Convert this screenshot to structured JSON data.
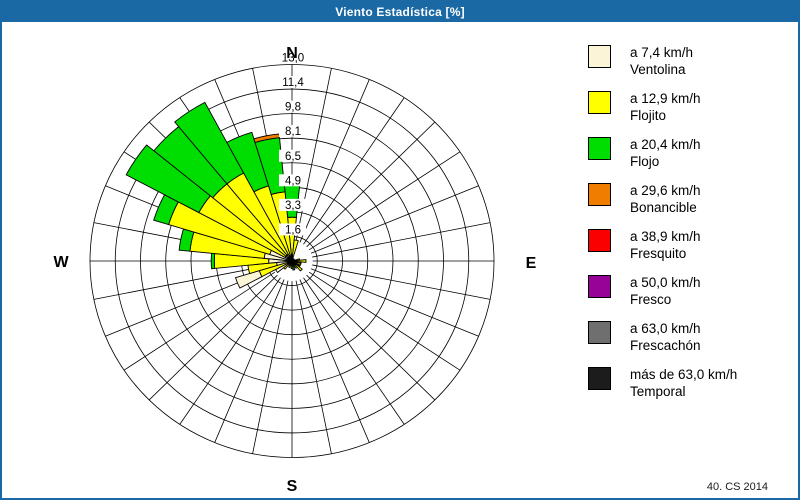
{
  "window": {
    "title": "Viento Estadística [%]"
  },
  "footer": {
    "credit": "40. CS 2014"
  },
  "legend": {
    "items": [
      {
        "color": "#FBF4D6",
        "speed": "a 7,4 km/h",
        "name": "Ventolina"
      },
      {
        "color": "#FFFF00",
        "speed": "a 12,9 km/h",
        "name": "Flojito"
      },
      {
        "color": "#00DD00",
        "speed": "a 20,4 km/h",
        "name": "Flojo"
      },
      {
        "color": "#F07D00",
        "speed": "a 29,6 km/h",
        "name": "Bonancible"
      },
      {
        "color": "#FA0000",
        "speed": "a 38,9 km/h",
        "name": "Fresquito"
      },
      {
        "color": "#970397",
        "speed": "a 50,0 km/h",
        "name": "Fresco"
      },
      {
        "color": "#6F6F6F",
        "speed": "a 63,0 km/h",
        "name": "Frescachón"
      },
      {
        "color": "#1C1C1C",
        "speed": "más de 63,0 km/h",
        "name": "Temporal"
      }
    ]
  },
  "chart_data": {
    "type": "windrose-polar-bar",
    "title": "Viento Estadística [%]",
    "units": "%",
    "max_value": 13.0,
    "sector_width_deg": 11.25,
    "grid": {
      "rings": 8,
      "spokes": 32,
      "hub_radius_value": 1.4
    },
    "ring_values": [
      1.6,
      3.3,
      4.9,
      6.5,
      8.1,
      9.8,
      11.4,
      13.0
    ],
    "ring_labels": [
      "1,6",
      "3,3",
      "4,9",
      "6,5",
      "8,1",
      "9,8",
      "11,4",
      "13,0"
    ],
    "cardinal_labels": {
      "n": "N",
      "e": "E",
      "s": "S",
      "w": "W"
    },
    "colors": {
      "cream": "#FBF4D6",
      "yellow": "#FFFF00",
      "green": "#00DD00",
      "orange": "#F07D00",
      "red": "#FA0000",
      "purple": "#970397",
      "gray": "#6F6F6F",
      "dark": "#1C1C1C"
    },
    "petals": [
      {
        "az": 0.0,
        "segments": [
          [
            "cream",
            0.4
          ],
          [
            "yellow",
            2.9
          ],
          [
            "green",
            5.3
          ],
          [
            "red",
            5.6
          ]
        ]
      },
      {
        "az": 11.25,
        "segments": [
          [
            "yellow",
            1.4
          ]
        ]
      },
      {
        "az": 78.75,
        "segments": [
          [
            "yellow",
            0.5
          ]
        ]
      },
      {
        "az": 90.0,
        "segments": [
          [
            "yellow",
            0.9
          ]
        ]
      },
      {
        "az": 101.25,
        "segments": [
          [
            "dark",
            0.6
          ]
        ]
      },
      {
        "az": 112.5,
        "segments": [
          [
            "yellow",
            0.6
          ]
        ]
      },
      {
        "az": 123.75,
        "segments": [
          [
            "dark",
            0.6
          ]
        ]
      },
      {
        "az": 135.0,
        "segments": [
          [
            "yellow",
            0.85
          ]
        ]
      },
      {
        "az": 146.25,
        "segments": [
          [
            "yellow",
            0.55
          ]
        ]
      },
      {
        "az": 157.5,
        "segments": [
          [
            "yellow",
            0.45
          ]
        ]
      },
      {
        "az": 168.75,
        "segments": [
          [
            "green",
            0.6
          ]
        ]
      },
      {
        "az": 180.0,
        "segments": [
          [
            "yellow",
            0.5
          ]
        ]
      },
      {
        "az": 202.5,
        "segments": [
          [
            "yellow",
            0.45
          ]
        ]
      },
      {
        "az": 225.0,
        "segments": [
          [
            "yellow",
            0.7
          ]
        ]
      },
      {
        "az": 236.25,
        "segments": [
          [
            "cream",
            1.2
          ]
        ]
      },
      {
        "az": 247.5,
        "segments": [
          [
            "yellow",
            2.2
          ],
          [
            "cream",
            3.8
          ]
        ]
      },
      {
        "az": 258.75,
        "segments": [
          [
            "cream",
            1.0
          ],
          [
            "yellow",
            2.85
          ]
        ]
      },
      {
        "az": 270.0,
        "segments": [
          [
            "cream",
            1.5
          ],
          [
            "yellow",
            5.0
          ],
          [
            "green",
            5.2
          ]
        ]
      },
      {
        "az": 281.25,
        "segments": [
          [
            "cream",
            1.8
          ],
          [
            "yellow",
            6.6
          ],
          [
            "green",
            7.3
          ]
        ]
      },
      {
        "az": 292.5,
        "segments": [
          [
            "cream",
            1.5
          ],
          [
            "yellow",
            8.3
          ],
          [
            "green",
            9.3
          ]
        ]
      },
      {
        "az": 303.75,
        "segments": [
          [
            "cream",
            0.5
          ],
          [
            "yellow",
            6.8
          ],
          [
            "green",
            12.1
          ]
        ]
      },
      {
        "az": 315.0,
        "segments": [
          [
            "cream",
            0.5
          ],
          [
            "yellow",
            6.6
          ],
          [
            "green",
            11.5
          ]
        ]
      },
      {
        "az": 326.25,
        "segments": [
          [
            "cream",
            0.5
          ],
          [
            "yellow",
            6.6
          ],
          [
            "green",
            11.9
          ]
        ]
      },
      {
        "az": 337.5,
        "segments": [
          [
            "cream",
            0.4
          ],
          [
            "yellow",
            5.2
          ],
          [
            "green",
            8.9
          ]
        ]
      },
      {
        "az": 348.75,
        "segments": [
          [
            "cream",
            0.4
          ],
          [
            "yellow",
            4.6
          ],
          [
            "green",
            8.2
          ],
          [
            "orange",
            8.45
          ]
        ]
      }
    ]
  }
}
